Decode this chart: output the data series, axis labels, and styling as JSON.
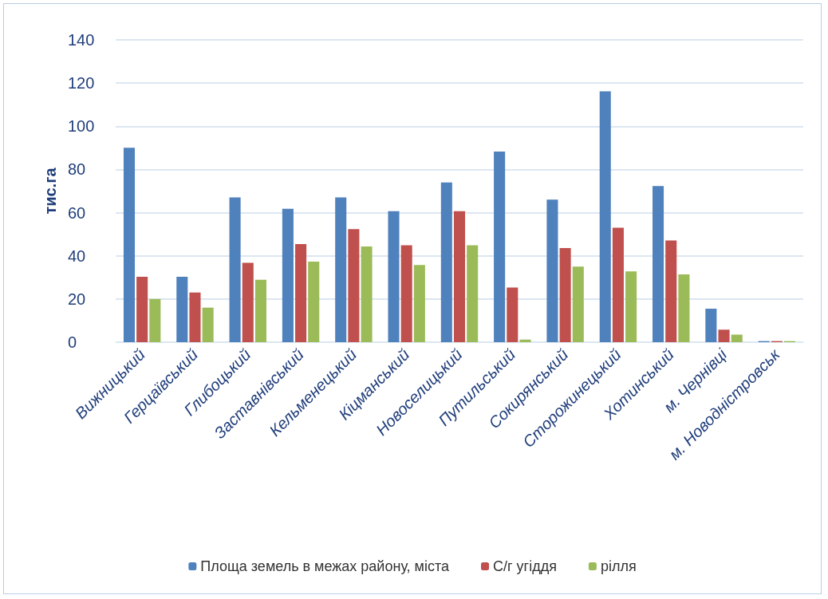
{
  "chart_data": {
    "type": "bar",
    "ylabel": "тис.га",
    "categories": [
      "Вижницький",
      "Герцаївський",
      "Глибоцький",
      "Заставнівський",
      "Кельменецький",
      "Кіцманський",
      "Новоселицький",
      "Путильський",
      "Сокирянський",
      "Сторожинецький",
      "Хотинський",
      "м. Чернівці",
      "м. Новодністровськ"
    ],
    "series": [
      {
        "name": "Площа земель в межах району, міста",
        "color": "#4f81bd",
        "values": [
          90,
          30.3,
          67,
          61.8,
          67,
          60.7,
          74,
          88.3,
          66,
          116.2,
          72.3,
          15.5,
          0.5
        ]
      },
      {
        "name": "С/г угіддя",
        "color": "#c0504d",
        "values": [
          30.3,
          23,
          36.8,
          45.4,
          52.4,
          44.9,
          60.7,
          25.3,
          43.6,
          53,
          47.1,
          5.8,
          0.5
        ]
      },
      {
        "name": "рілля",
        "color": "#9bbb59",
        "values": [
          20,
          16,
          28.9,
          37.3,
          44.3,
          35.7,
          44.9,
          1.2,
          35,
          32.8,
          31.4,
          3.5,
          0.5
        ]
      }
    ],
    "ylim": [
      0,
      140
    ],
    "yticks": [
      0,
      20,
      40,
      60,
      80,
      100,
      120,
      140
    ],
    "grid": "y",
    "legend": "bottom"
  }
}
